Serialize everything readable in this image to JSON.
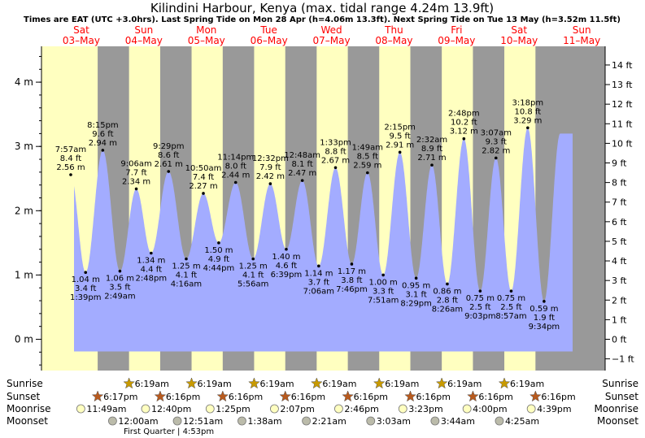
{
  "title": "Kilindini Harbour, Kenya (max. tidal range 4.24m 13.9ft)",
  "subtitle": "Times are EAT (UTC +3.0hrs). Last Spring Tide on Mon 28 Apr (h=4.06m 13.3ft). Next Spring Tide on Tue 13 May (h=3.52m 11.5ft)",
  "colors": {
    "day": "#ffffc0",
    "night": "#999999",
    "tide": "#a3acff",
    "day_label": "#ff0000",
    "sun_star": "#c89a00",
    "sunset_star": "#b75a1e",
    "moonrise": "#ffffc0",
    "moonset": "#bbbbaa"
  },
  "day_labels": [
    {
      "day": "Sat",
      "date": "03–May"
    },
    {
      "day": "Sun",
      "date": "04–May"
    },
    {
      "day": "Mon",
      "date": "05–May"
    },
    {
      "day": "Tue",
      "date": "06–May"
    },
    {
      "day": "Wed",
      "date": "07–May"
    },
    {
      "day": "Thu",
      "date": "08–May"
    },
    {
      "day": "Fri",
      "date": "09–May"
    },
    {
      "day": "Sat",
      "date": "10–May"
    },
    {
      "day": "Sun",
      "date": "11–May"
    }
  ],
  "chart_data": {
    "type": "area",
    "left_axis": {
      "unit": "m",
      "range": [
        -0.6,
        4.55
      ],
      "ticks": [
        "0 m",
        "1 m",
        "2 m",
        "3 m",
        "4 m"
      ],
      "tick_values": [
        0,
        1,
        2,
        3,
        4
      ]
    },
    "right_axis": {
      "unit": "ft",
      "ticks": [
        "−1 ft",
        "0 ft",
        "1 ft",
        "2 ft",
        "3 ft",
        "4 ft",
        "5 ft",
        "6 ft",
        "7 ft",
        "8 ft",
        "9 ft",
        "10 ft",
        "11 ft",
        "12 ft",
        "13 ft",
        "14 ft"
      ],
      "tick_values": [
        -1,
        0,
        1,
        2,
        3,
        4,
        5,
        6,
        7,
        8,
        9,
        10,
        11,
        12,
        13,
        14
      ]
    },
    "start": {
      "date": "03–May",
      "time": "00:00"
    },
    "end": {
      "date": "11–May",
      "time": "00:00"
    },
    "tides": [
      {
        "date": "03–May",
        "time": "7:57 am",
        "t": "07:57",
        "m": 2.56,
        "ft_label": "8.4 ft",
        "m_label": "2.56 m",
        "type": "high"
      },
      {
        "date": "03–May",
        "time": "1:39 pm",
        "t": "13:39",
        "m": 1.04,
        "ft_label": "3.4 ft",
        "m_label": "1.04 m",
        "type": "low"
      },
      {
        "date": "03–May",
        "time": "8:15 pm",
        "t": "20:15",
        "m": 2.94,
        "ft_label": "9.6 ft",
        "m_label": "2.94 m",
        "type": "high"
      },
      {
        "date": "04–May",
        "time": "2:49 am",
        "t": "02:49",
        "m": 1.06,
        "ft_label": "3.5 ft",
        "m_label": "1.06 m",
        "type": "low"
      },
      {
        "date": "04–May",
        "time": "9:06 am",
        "t": "09:06",
        "m": 2.34,
        "ft_label": "7.7 ft",
        "m_label": "2.34 m",
        "type": "high"
      },
      {
        "date": "04–May",
        "time": "2:48 pm",
        "t": "14:48",
        "m": 1.34,
        "ft_label": "4.4 ft",
        "m_label": "1.34 m",
        "type": "low"
      },
      {
        "date": "04–May",
        "time": "9:29 pm",
        "t": "21:29",
        "m": 2.61,
        "ft_label": "8.6 ft",
        "m_label": "2.61 m",
        "type": "high"
      },
      {
        "date": "05–May",
        "time": "4:16 am",
        "t": "04:16",
        "m": 1.25,
        "ft_label": "4.1 ft",
        "m_label": "1.25 m",
        "type": "low"
      },
      {
        "date": "05–May",
        "time": "10:50 am",
        "t": "10:50",
        "m": 2.27,
        "ft_label": "7.4 ft",
        "m_label": "2.27 m",
        "type": "high"
      },
      {
        "date": "05–May",
        "time": "4:44 pm",
        "t": "16:44",
        "m": 1.5,
        "ft_label": "4.9 ft",
        "m_label": "1.50 m",
        "type": "low"
      },
      {
        "date": "05–May",
        "time": "11:14 pm",
        "t": "23:14",
        "m": 2.44,
        "ft_label": "8.0 ft",
        "m_label": "2.44 m",
        "type": "high"
      },
      {
        "date": "06–May",
        "time": "5:56 am",
        "t": "05:56",
        "m": 1.25,
        "ft_label": "4.1 ft",
        "m_label": "1.25 m",
        "type": "low"
      },
      {
        "date": "06–May",
        "time": "12:32 pm",
        "t": "12:32",
        "m": 2.42,
        "ft_label": "7.9 ft",
        "m_label": "2.42 m",
        "type": "high"
      },
      {
        "date": "06–May",
        "time": "6:39 pm",
        "t": "18:39",
        "m": 1.4,
        "ft_label": "4.6 ft",
        "m_label": "1.40 m",
        "type": "low"
      },
      {
        "date": "07–May",
        "time": "12:48 am",
        "t": "00:48",
        "m": 2.47,
        "ft_label": "8.1 ft",
        "m_label": "2.47 m",
        "type": "high"
      },
      {
        "date": "07–May",
        "time": "7:06 am",
        "t": "07:06",
        "m": 1.14,
        "ft_label": "3.7 ft",
        "m_label": "1.14 m",
        "type": "low"
      },
      {
        "date": "07–May",
        "time": "1:33 pm",
        "t": "13:33",
        "m": 2.67,
        "ft_label": "8.8 ft",
        "m_label": "2.67 m",
        "type": "high"
      },
      {
        "date": "07–May",
        "time": "7:46 pm",
        "t": "19:46",
        "m": 1.17,
        "ft_label": "3.8 ft",
        "m_label": "1.17 m",
        "type": "low"
      },
      {
        "date": "08–May",
        "time": "1:49 am",
        "t": "01:49",
        "m": 2.59,
        "ft_label": "8.5 ft",
        "m_label": "2.59 m",
        "type": "high"
      },
      {
        "date": "08–May",
        "time": "7:51 am",
        "t": "07:51",
        "m": 1.0,
        "ft_label": "3.3 ft",
        "m_label": "1.00 m",
        "type": "low"
      },
      {
        "date": "08–May",
        "time": "2:15 pm",
        "t": "14:15",
        "m": 2.91,
        "ft_label": "9.5 ft",
        "m_label": "2.91 m",
        "type": "high"
      },
      {
        "date": "08–May",
        "time": "8:29 pm",
        "t": "20:29",
        "m": 0.95,
        "ft_label": "3.1 ft",
        "m_label": "0.95 m",
        "type": "low"
      },
      {
        "date": "09–May",
        "time": "2:32 am",
        "t": "02:32",
        "m": 2.71,
        "ft_label": "8.9 ft",
        "m_label": "2.71 m",
        "type": "high"
      },
      {
        "date": "09–May",
        "time": "8:26 am",
        "t": "08:26",
        "m": 0.86,
        "ft_label": "2.8 ft",
        "m_label": "0.86 m",
        "type": "low"
      },
      {
        "date": "09–May",
        "time": "2:48 pm",
        "t": "14:48",
        "m": 3.12,
        "ft_label": "10.2 ft",
        "m_label": "3.12 m",
        "type": "high"
      },
      {
        "date": "09–May",
        "time": "9:03 pm",
        "t": "21:03",
        "m": 0.75,
        "ft_label": "2.5 ft",
        "m_label": "0.75 m",
        "type": "low"
      },
      {
        "date": "10–May",
        "time": "3:07 am",
        "t": "03:07",
        "m": 2.82,
        "ft_label": "9.3 ft",
        "m_label": "2.82 m",
        "type": "high"
      },
      {
        "date": "10–May",
        "time": "8:57 am",
        "t": "08:57",
        "m": 0.75,
        "ft_label": "2.5 ft",
        "m_label": "0.75 m",
        "type": "low"
      },
      {
        "date": "10–May",
        "time": "3:18 pm",
        "t": "15:18",
        "m": 3.29,
        "ft_label": "10.8 ft",
        "m_label": "3.29 m",
        "type": "high"
      },
      {
        "date": "10–May",
        "time": "9:34 pm",
        "t": "21:34",
        "m": 0.59,
        "ft_label": "1.9 ft",
        "m_label": "0.59 m",
        "type": "low"
      }
    ]
  },
  "sun_moon": {
    "rows": [
      "Sunrise",
      "Sunset",
      "Moonrise",
      "Moonset"
    ],
    "sunrise": [
      {
        "date": "04–May",
        "t": "06:19",
        "label": "6:19am"
      },
      {
        "date": "05–May",
        "t": "06:19",
        "label": "6:19am"
      },
      {
        "date": "06–May",
        "t": "06:19",
        "label": "6:19am"
      },
      {
        "date": "07–May",
        "t": "06:19",
        "label": "6:19am"
      },
      {
        "date": "08–May",
        "t": "06:19",
        "label": "6:19am"
      },
      {
        "date": "09–May",
        "t": "06:19",
        "label": "6:19am"
      },
      {
        "date": "10–May",
        "t": "06:19",
        "label": "6:19am"
      }
    ],
    "sunset": [
      {
        "date": "03–May",
        "t": "18:17",
        "label": "6:17pm"
      },
      {
        "date": "04–May",
        "t": "18:16",
        "label": "6:16pm"
      },
      {
        "date": "05–May",
        "t": "18:16",
        "label": "6:16pm"
      },
      {
        "date": "06–May",
        "t": "18:16",
        "label": "6:16pm"
      },
      {
        "date": "07–May",
        "t": "18:16",
        "label": "6:16pm"
      },
      {
        "date": "08–May",
        "t": "18:16",
        "label": "6:16pm"
      },
      {
        "date": "09–May",
        "t": "18:16",
        "label": "6:16pm"
      },
      {
        "date": "10–May",
        "t": "18:16",
        "label": "6:16pm"
      }
    ],
    "moonrise": [
      {
        "date": "03–May",
        "t": "11:49",
        "label": "11:49am"
      },
      {
        "date": "04–May",
        "t": "12:40",
        "label": "12:40pm"
      },
      {
        "date": "05–May",
        "t": "13:25",
        "label": "1:25pm"
      },
      {
        "date": "06–May",
        "t": "14:07",
        "label": "2:07pm"
      },
      {
        "date": "07–May",
        "t": "14:46",
        "label": "2:46pm"
      },
      {
        "date": "08–May",
        "t": "15:23",
        "label": "3:23pm"
      },
      {
        "date": "09–May",
        "t": "16:00",
        "label": "4:00pm"
      },
      {
        "date": "10–May",
        "t": "16:39",
        "label": "4:39pm"
      }
    ],
    "moonset": [
      {
        "date": "04–May",
        "t": "00:00",
        "label": "12:00am"
      },
      {
        "date": "05–May",
        "t": "00:51",
        "label": "12:51am"
      },
      {
        "date": "06–May",
        "t": "01:38",
        "label": "1:38am"
      },
      {
        "date": "07–May",
        "t": "02:21",
        "label": "2:21am"
      },
      {
        "date": "08–May",
        "t": "03:03",
        "label": "3:03am"
      },
      {
        "date": "09–May",
        "t": "03:44",
        "label": "3:44am"
      },
      {
        "date": "10–May",
        "t": "04:25",
        "label": "4:25am"
      }
    ],
    "moon_phase": "First Quarter | 4:53pm"
  }
}
